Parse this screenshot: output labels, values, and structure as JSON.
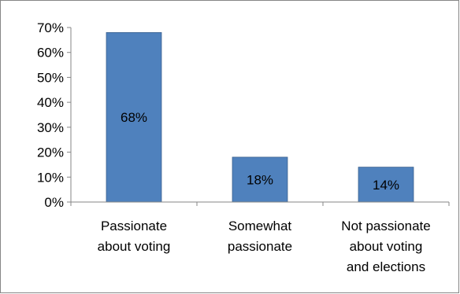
{
  "chart_data": {
    "type": "bar",
    "categories": [
      [
        "Passionate",
        "about voting"
      ],
      [
        "Somewhat",
        "passionate"
      ],
      [
        "Not passionate",
        "about voting",
        "and elections"
      ]
    ],
    "values": [
      68,
      18,
      14
    ],
    "data_labels": [
      "68%",
      "18%",
      "14%"
    ],
    "ylim": [
      0,
      70
    ],
    "yticks": [
      0,
      10,
      20,
      30,
      40,
      50,
      60,
      70
    ],
    "ytick_labels": [
      "0%",
      "10%",
      "20%",
      "30%",
      "40%",
      "50%",
      "60%",
      "70%"
    ],
    "bar_color": "#4f81bd",
    "bar_border_color": "#385d8a",
    "axis_color": "#868686",
    "grid": false,
    "legend": "none",
    "title": "",
    "xlabel": "",
    "ylabel": ""
  }
}
